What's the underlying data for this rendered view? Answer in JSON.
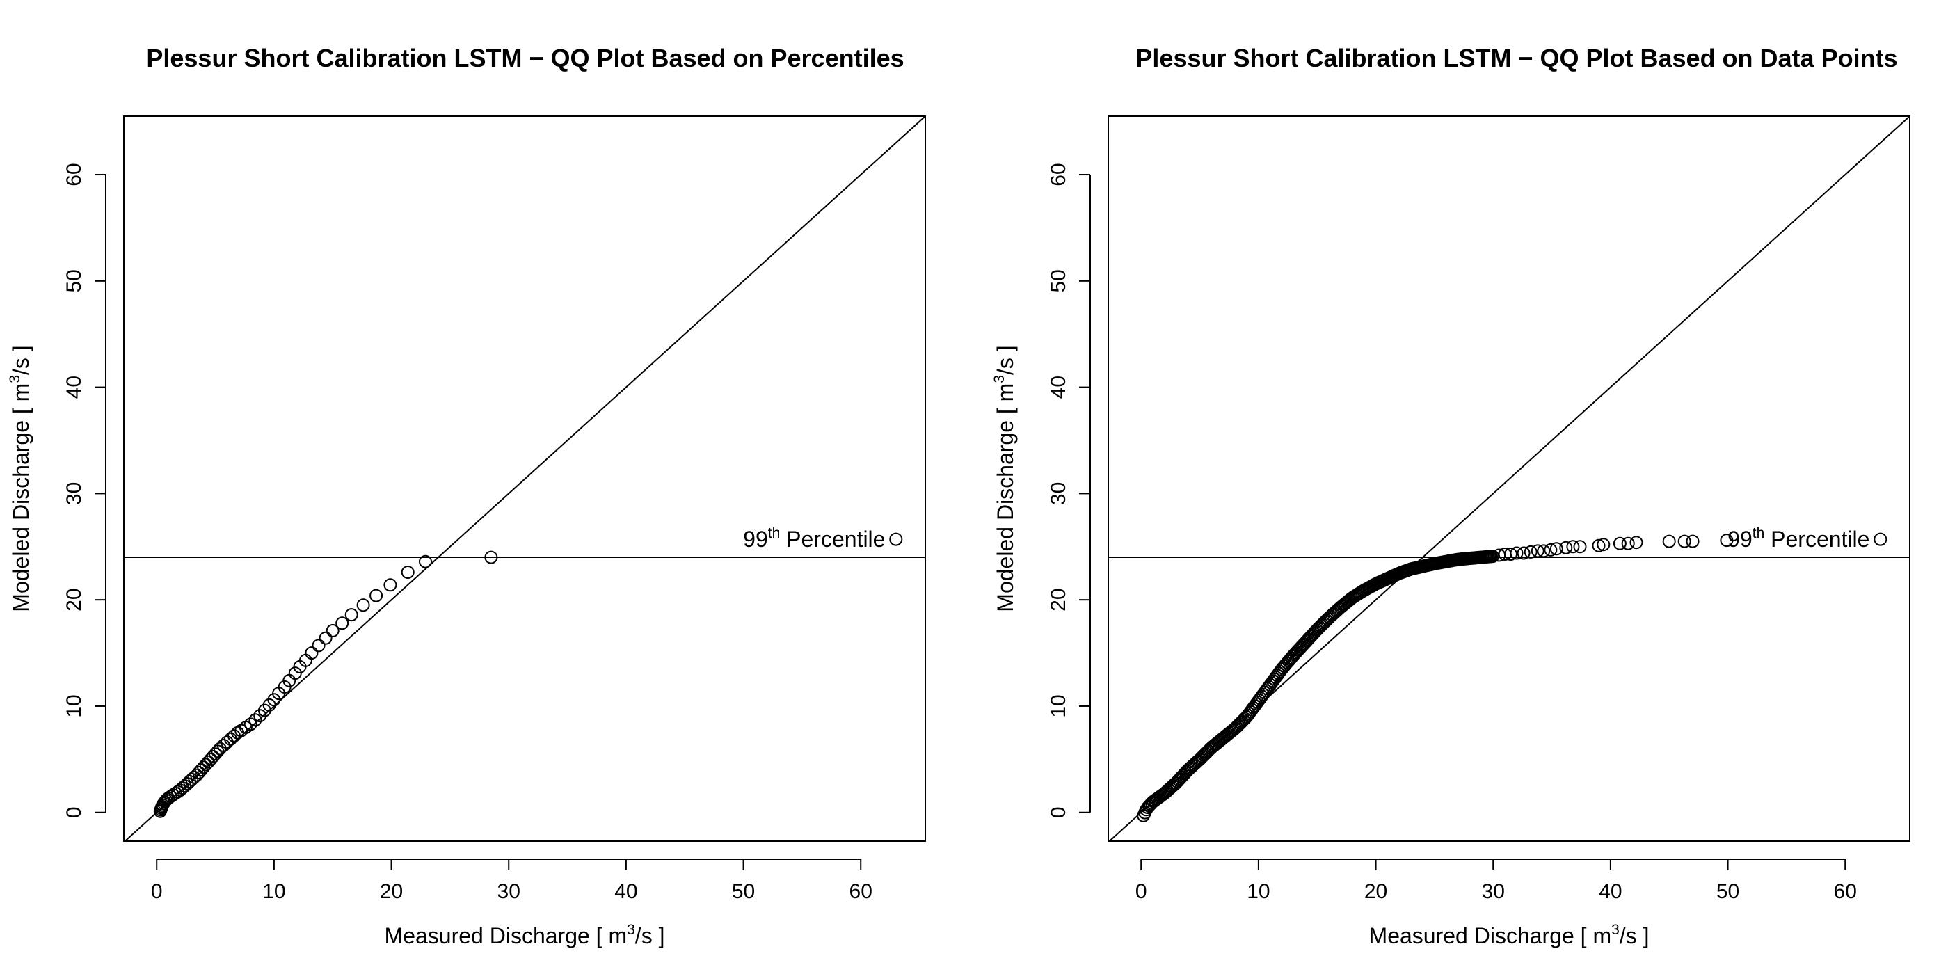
{
  "chart_data": [
    {
      "type": "scatter",
      "title": "Plessur Short Calibration LSTM − QQ Plot Based on Percentiles",
      "xlabel": {
        "pre": "Measured Discharge [ m",
        "sup": "3",
        "post": "/s ]"
      },
      "ylabel": {
        "pre": "Modeled Discharge [ m",
        "sup": "3",
        "post": "/s ]"
      },
      "xlim": [
        -2.8,
        65.5
      ],
      "ylim": [
        -2.7,
        65.5
      ],
      "xticks": [
        0,
        10,
        20,
        30,
        40,
        50,
        60
      ],
      "yticks": [
        0,
        10,
        20,
        30,
        40,
        50,
        60
      ],
      "grid": false,
      "reference_lines": [
        {
          "kind": "identity",
          "slope": 1,
          "intercept": 0
        },
        {
          "kind": "horizontal",
          "y": 24.0
        }
      ],
      "annotation": {
        "pre": "99",
        "sup": "th",
        "post": " Percentile",
        "x": 62.8,
        "y": 25.7
      },
      "points": [
        [
          0.3,
          0.1
        ],
        [
          0.35,
          0.25
        ],
        [
          0.4,
          0.4
        ],
        [
          0.45,
          0.55
        ],
        [
          0.5,
          0.7
        ],
        [
          0.6,
          0.85
        ],
        [
          0.7,
          1.0
        ],
        [
          0.8,
          1.15
        ],
        [
          0.9,
          1.25
        ],
        [
          1.0,
          1.35
        ],
        [
          1.2,
          1.5
        ],
        [
          1.4,
          1.65
        ],
        [
          1.6,
          1.8
        ],
        [
          1.8,
          1.95
        ],
        [
          2.0,
          2.1
        ],
        [
          2.2,
          2.3
        ],
        [
          2.4,
          2.5
        ],
        [
          2.6,
          2.7
        ],
        [
          2.8,
          2.9
        ],
        [
          3.0,
          3.1
        ],
        [
          3.2,
          3.3
        ],
        [
          3.4,
          3.5
        ],
        [
          3.6,
          3.75
        ],
        [
          3.8,
          4.0
        ],
        [
          4.0,
          4.25
        ],
        [
          4.2,
          4.5
        ],
        [
          4.4,
          4.75
        ],
        [
          4.6,
          5.0
        ],
        [
          4.8,
          5.25
        ],
        [
          5.0,
          5.5
        ],
        [
          5.2,
          5.75
        ],
        [
          5.4,
          6.0
        ],
        [
          5.7,
          6.3
        ],
        [
          6.0,
          6.6
        ],
        [
          6.3,
          6.9
        ],
        [
          6.6,
          7.2
        ],
        [
          6.9,
          7.5
        ],
        [
          7.2,
          7.7
        ],
        [
          7.6,
          8.0
        ],
        [
          8.0,
          8.3
        ],
        [
          8.4,
          8.7
        ],
        [
          8.8,
          9.1
        ],
        [
          9.2,
          9.6
        ],
        [
          9.6,
          10.1
        ],
        [
          10.0,
          10.6
        ],
        [
          10.4,
          11.2
        ],
        [
          10.9,
          11.8
        ],
        [
          11.3,
          12.4
        ],
        [
          11.8,
          13.1
        ],
        [
          12.2,
          13.7
        ],
        [
          12.7,
          14.3
        ],
        [
          13.2,
          15.0
        ],
        [
          13.8,
          15.7
        ],
        [
          14.4,
          16.4
        ],
        [
          15.0,
          17.1
        ],
        [
          15.8,
          17.8
        ],
        [
          16.6,
          18.6
        ],
        [
          17.6,
          19.5
        ],
        [
          18.7,
          20.4
        ],
        [
          19.9,
          21.4
        ],
        [
          21.4,
          22.6
        ],
        [
          22.9,
          23.6
        ],
        [
          28.5,
          24.0
        ],
        [
          63.0,
          25.7
        ]
      ]
    },
    {
      "type": "scatter",
      "title": "Plessur Short Calibration LSTM − QQ Plot Based on Data Points",
      "xlabel": {
        "pre": "Measured Discharge [ m",
        "sup": "3",
        "post": "/s ]"
      },
      "ylabel": {
        "pre": "Modeled Discharge [ m",
        "sup": "3",
        "post": "/s ]"
      },
      "xlim": [
        -2.8,
        65.5
      ],
      "ylim": [
        -2.7,
        65.5
      ],
      "xticks": [
        0,
        10,
        20,
        30,
        40,
        50,
        60
      ],
      "yticks": [
        0,
        10,
        20,
        30,
        40,
        50,
        60
      ],
      "grid": false,
      "reference_lines": [
        {
          "kind": "identity",
          "slope": 1,
          "intercept": 0
        },
        {
          "kind": "horizontal",
          "y": 24.0
        }
      ],
      "annotation": {
        "pre": "99",
        "sup": "th",
        "post": " Percentile",
        "x": 62.8,
        "y": 25.7
      },
      "curve": {
        "x_start": 0.2,
        "x_end": 30.0,
        "step": 0.12,
        "knots": [
          [
            0.2,
            -0.3
          ],
          [
            0.5,
            0.4
          ],
          [
            1.0,
            1.0
          ],
          [
            2.0,
            1.8
          ],
          [
            3.0,
            2.8
          ],
          [
            4.0,
            4.0
          ],
          [
            5.0,
            5.0
          ],
          [
            6.0,
            6.1
          ],
          [
            7.0,
            7.0
          ],
          [
            8.0,
            7.9
          ],
          [
            9.0,
            9.0
          ],
          [
            10.0,
            10.5
          ],
          [
            11.0,
            12.0
          ],
          [
            12.0,
            13.5
          ],
          [
            13.0,
            14.8
          ],
          [
            14.0,
            16.0
          ],
          [
            15.0,
            17.2
          ],
          [
            16.0,
            18.3
          ],
          [
            17.0,
            19.3
          ],
          [
            18.0,
            20.2
          ],
          [
            19.0,
            20.9
          ],
          [
            20.0,
            21.5
          ],
          [
            21.0,
            22.0
          ],
          [
            22.0,
            22.5
          ],
          [
            23.0,
            22.9
          ],
          [
            25.0,
            23.4
          ],
          [
            27.0,
            23.8
          ],
          [
            29.0,
            24.0
          ],
          [
            30.0,
            24.1
          ]
        ]
      },
      "tail_points": [
        [
          30.5,
          24.2
        ],
        [
          31.0,
          24.3
        ],
        [
          31.5,
          24.3
        ],
        [
          32.0,
          24.4
        ],
        [
          32.6,
          24.4
        ],
        [
          33.2,
          24.5
        ],
        [
          33.8,
          24.6
        ],
        [
          34.3,
          24.6
        ],
        [
          34.9,
          24.7
        ],
        [
          35.4,
          24.8
        ],
        [
          36.2,
          24.9
        ],
        [
          36.8,
          25.0
        ],
        [
          37.4,
          25.0
        ],
        [
          39.0,
          25.1
        ],
        [
          39.4,
          25.2
        ],
        [
          40.8,
          25.3
        ],
        [
          41.5,
          25.3
        ],
        [
          42.2,
          25.4
        ],
        [
          45.0,
          25.5
        ],
        [
          46.3,
          25.5
        ],
        [
          47.0,
          25.5
        ],
        [
          49.9,
          25.6
        ],
        [
          63.0,
          25.7
        ]
      ]
    }
  ]
}
